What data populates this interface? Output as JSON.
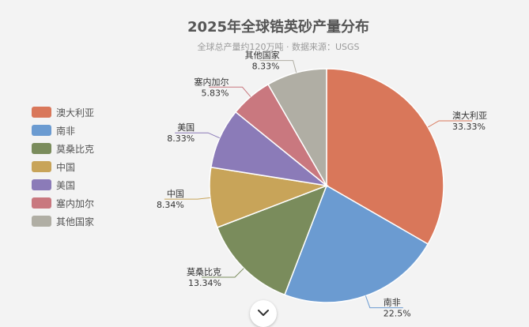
{
  "chart_data": {
    "type": "pie",
    "title": "2025年全球锆英砂产量分布",
    "subtitle": "全球总产量约120万吨 · 数据来源：USGS",
    "categories": [
      "澳大利亚",
      "南非",
      "莫桑比克",
      "中国",
      "美国",
      "塞内加尔",
      "其他国家"
    ],
    "values": [
      33.33,
      22.5,
      13.34,
      8.34,
      8.33,
      5.83,
      8.33
    ],
    "labels": [
      "33.33%",
      "22.5%",
      "13.34%",
      "8.34%",
      "8.33%",
      "5.83%",
      "8.33%"
    ],
    "colors": [
      "#d9775a",
      "#6b9bd1",
      "#7a8c5c",
      "#c8a459",
      "#8b7bb8",
      "#c9787f",
      "#b0aea4"
    ],
    "legend_position": "left"
  },
  "ui": {
    "expand_icon": "chevron-down-icon"
  }
}
